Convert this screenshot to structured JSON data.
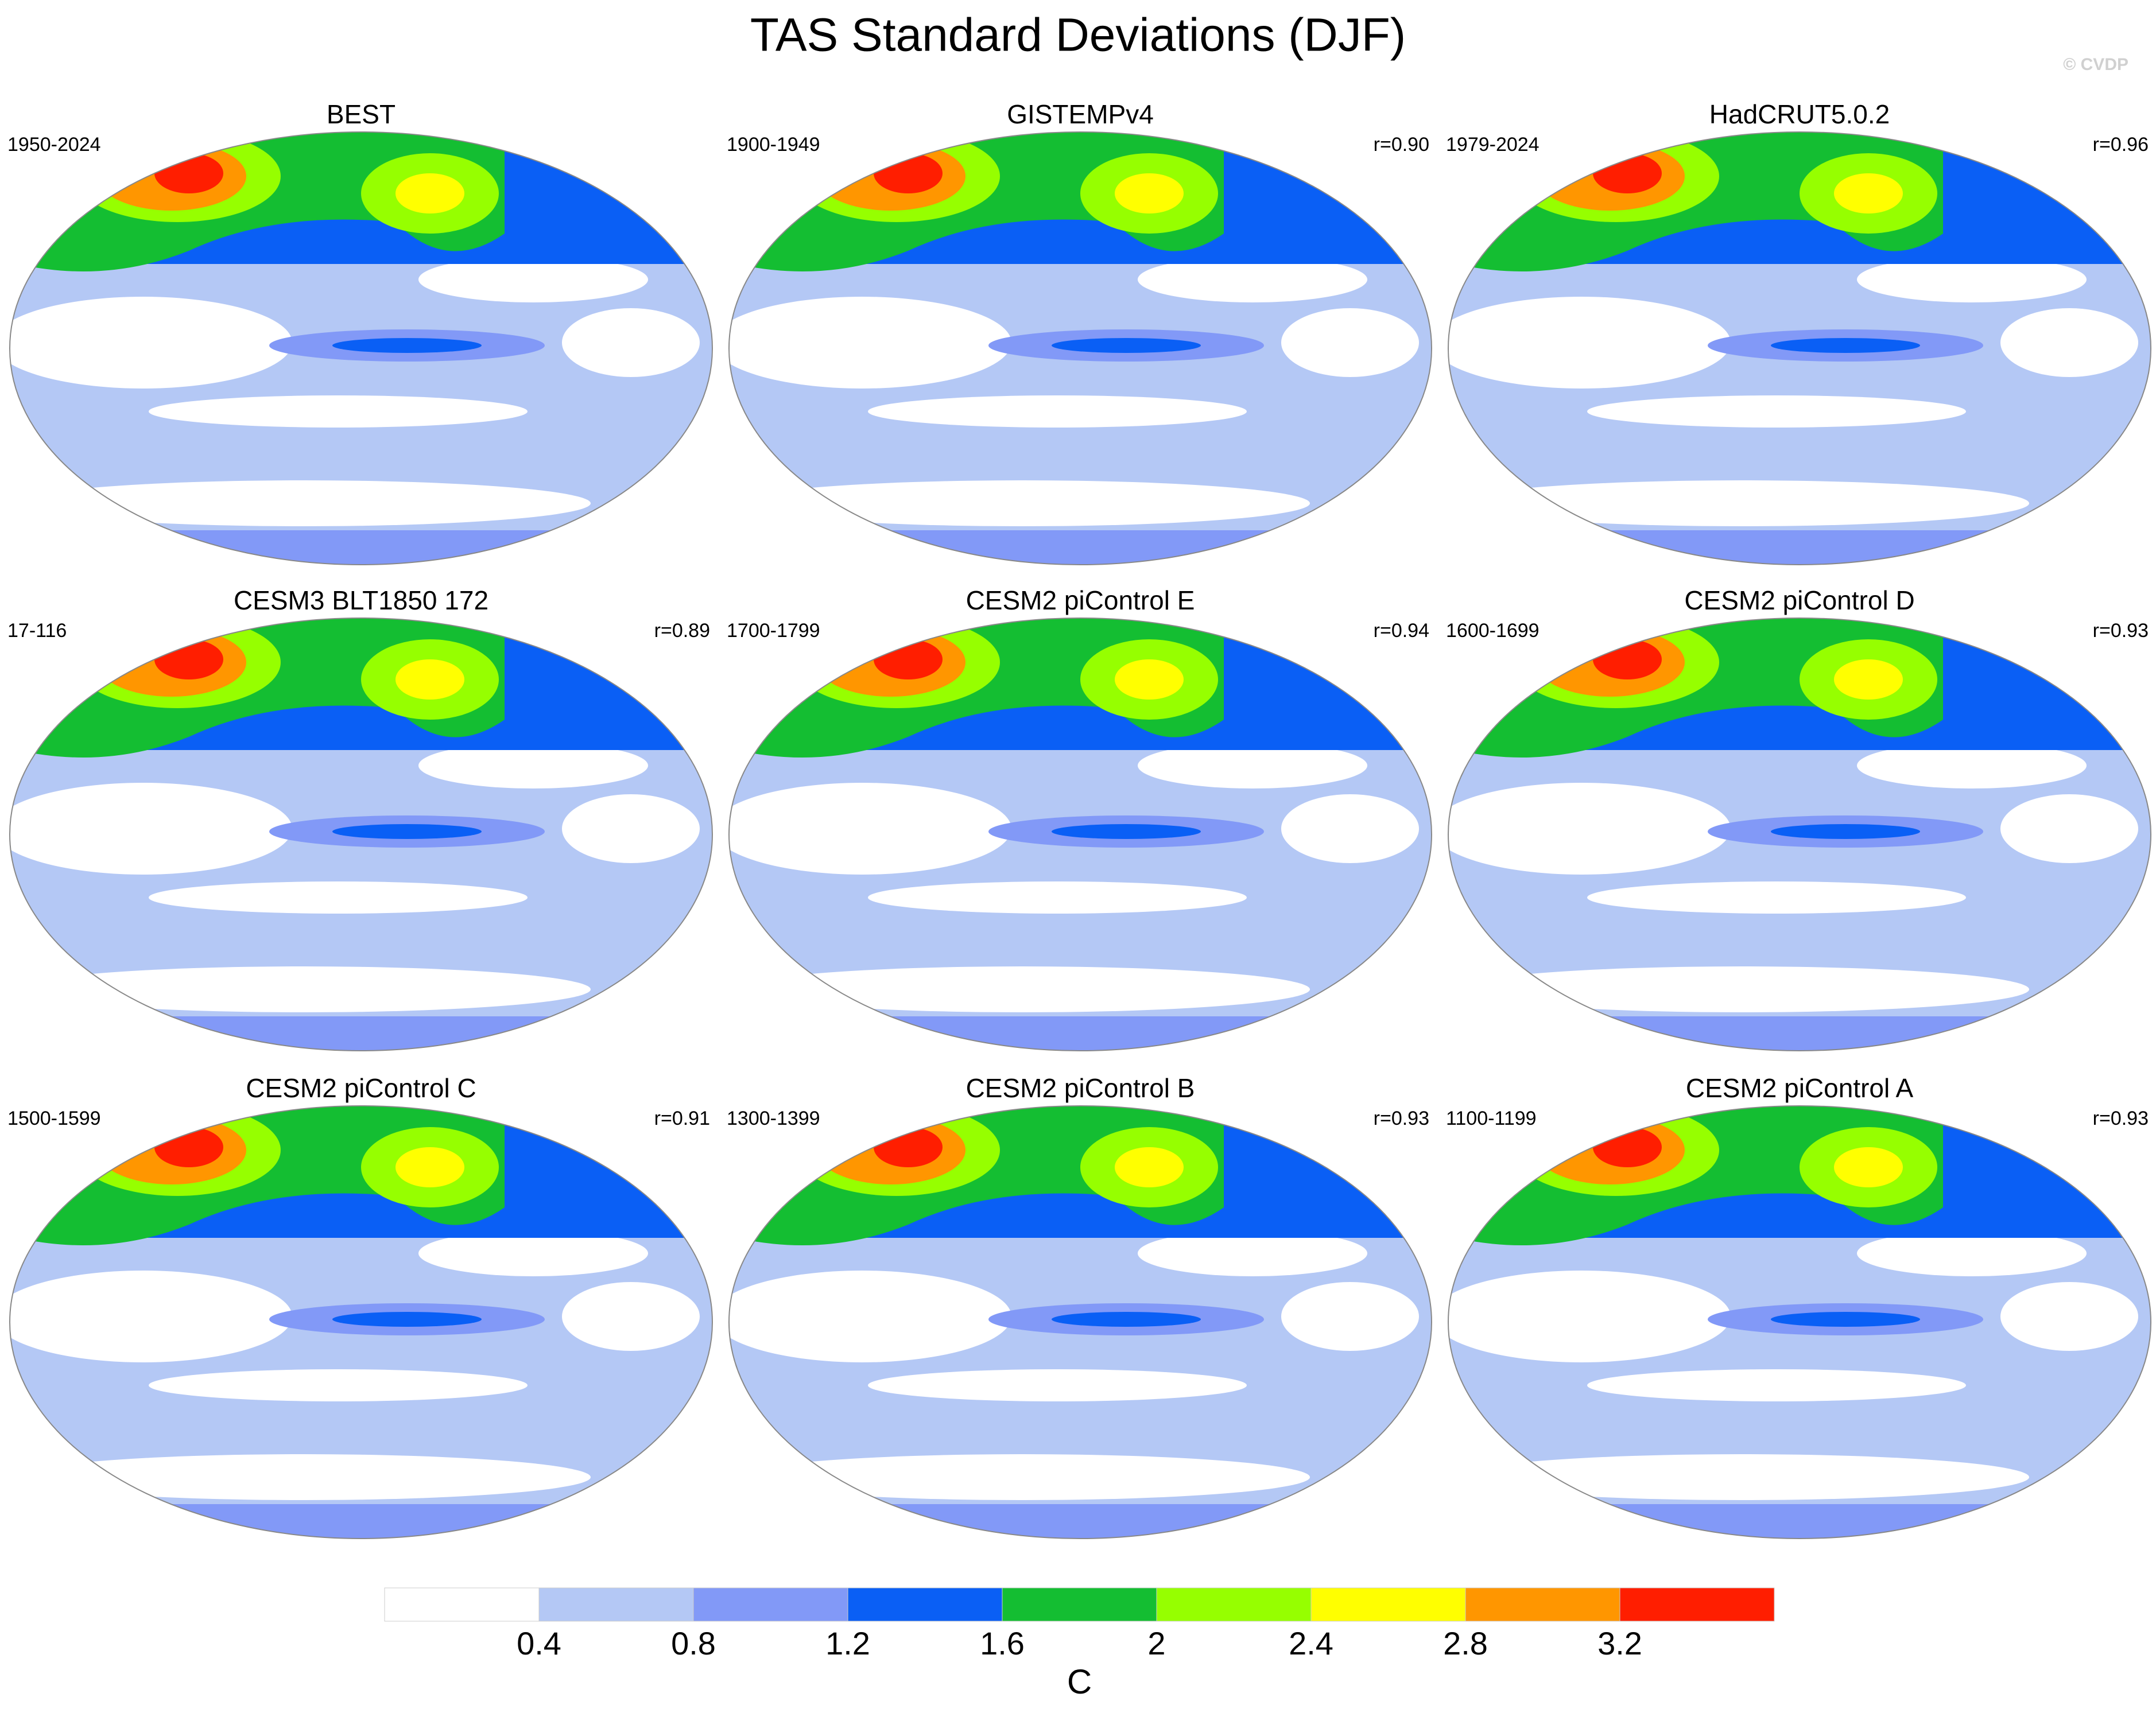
{
  "title": "TAS Standard Deviations (DJF)",
  "watermark": "© CVDP",
  "panels": [
    {
      "title": "BEST",
      "period": "1950-2024"
    },
    {
      "title": "GISTEMPv4",
      "period": "1900-1949",
      "r": "r=0.90"
    },
    {
      "title": "HadCRUT5.0.2",
      "period": "1979-2024",
      "r": "r=0.96"
    },
    {
      "title": "CESM3 BLT1850 172",
      "period": "17-116",
      "r": "r=0.89"
    },
    {
      "title": "CESM2 piControl E",
      "period": "1700-1799",
      "r": "r=0.94"
    },
    {
      "title": "CESM2 piControl D",
      "period": "1600-1699",
      "r": "r=0.93"
    },
    {
      "title": "CESM2 piControl C",
      "period": "1500-1599",
      "r": "r=0.91"
    },
    {
      "title": "CESM2 piControl B",
      "period": "1300-1399",
      "r": "r=0.93"
    },
    {
      "title": "CESM2 piControl A",
      "period": "1100-1199",
      "r": "r=0.93"
    }
  ],
  "colorbar": {
    "label": "C",
    "ticks": [
      0.4,
      0.8,
      1.2,
      1.6,
      2,
      2.4,
      2.8,
      3.2
    ],
    "colors": [
      "#ffffff",
      "#b4c8f5",
      "#8299f7",
      "#0a5ff5",
      "#14be32",
      "#96ff00",
      "#ffff00",
      "#ff9600",
      "#ff1e00"
    ]
  }
}
